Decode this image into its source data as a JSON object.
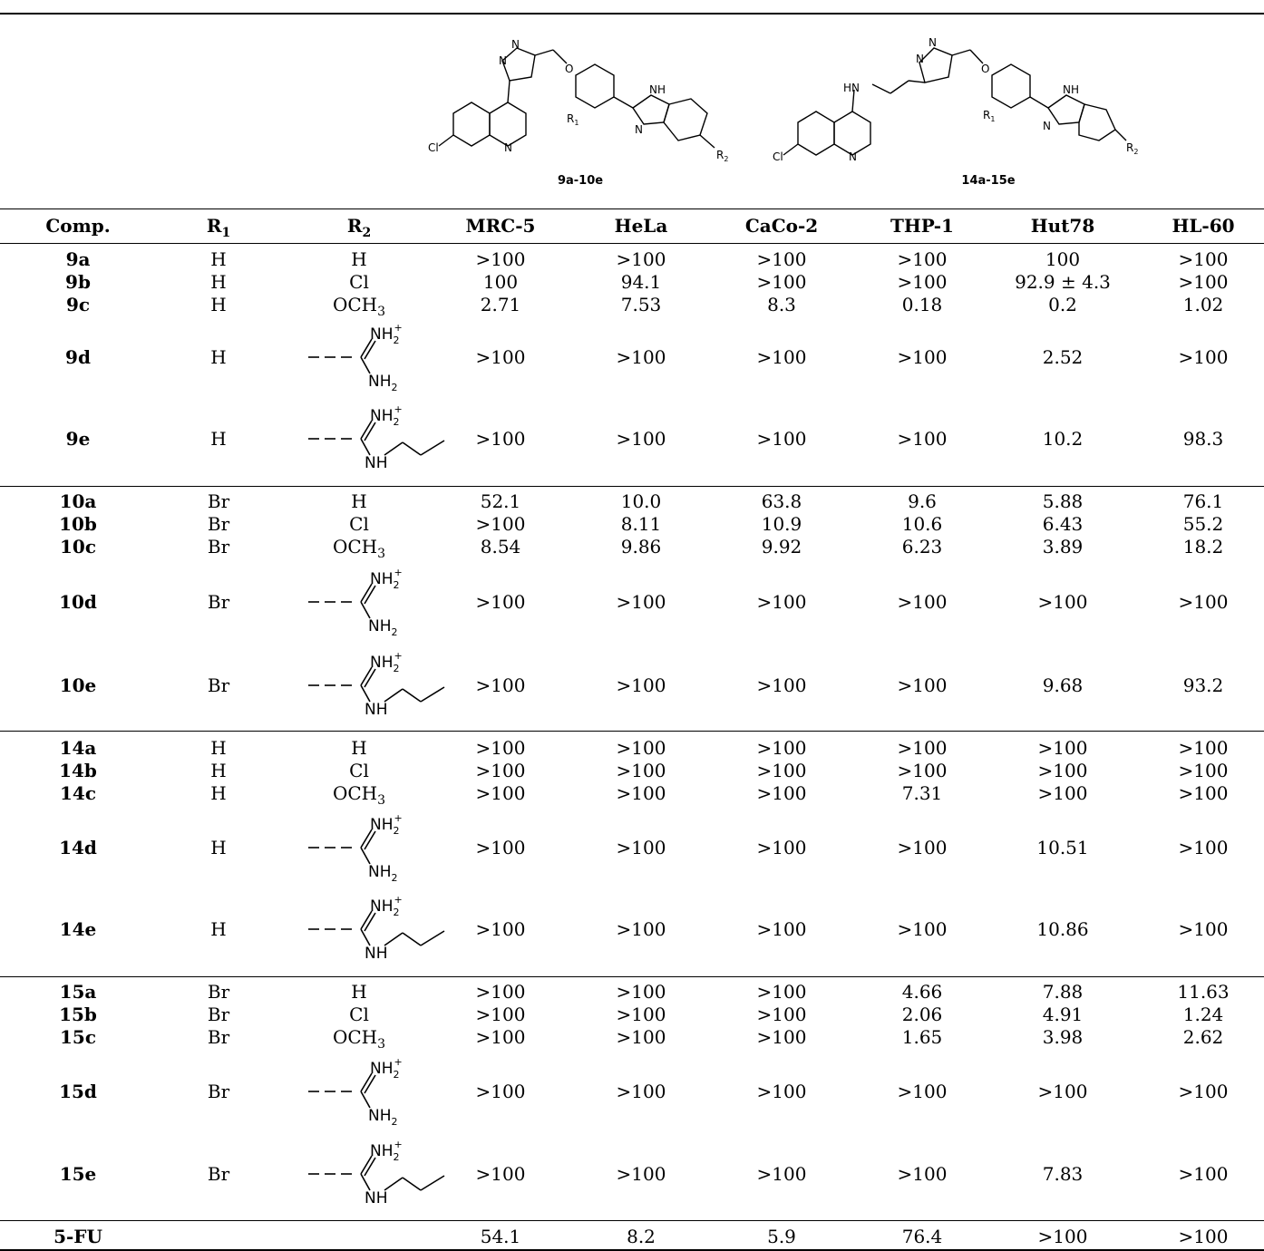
{
  "structures": [
    {
      "label": "9a-10e"
    },
    {
      "label": "14a-15e"
    }
  ],
  "atoms": {
    "N": "N",
    "O": "O",
    "Cl": "Cl",
    "NH": "NH",
    "HN": "HN",
    "R1": "R",
    "R2": "R",
    "one": "1",
    "two": "2"
  },
  "amidine": {
    "top": "NH",
    "top_sub": "2",
    "plus": "+",
    "bottom": "NH",
    "bottom_sub": "2"
  },
  "guanidine": {
    "top": "NH",
    "top_sub": "2",
    "plus": "+",
    "bottom": "NH"
  },
  "headers": {
    "comp": "Comp.",
    "r1_base": "R",
    "r1_sub": "1",
    "r2_base": "R",
    "r2_sub": "2",
    "c1": "MRC-5",
    "c2": "HeLa",
    "c3": "CaCo-2",
    "c4": "THP-1",
    "c5": "Hut78",
    "c6": "HL-60"
  },
  "rows": [
    {
      "comp": "9a",
      "r1": "H",
      "r2": "H",
      "v": [
        ">100",
        ">100",
        ">100",
        ">100",
        "100",
        ">100"
      ]
    },
    {
      "comp": "9b",
      "r1": "H",
      "r2": "Cl",
      "v": [
        "100",
        "94.1",
        ">100",
        ">100",
        "92.9 ± 4.3",
        ">100"
      ]
    },
    {
      "comp": "9c",
      "r1": "H",
      "r2": "OCH",
      "r2sub": "3",
      "v": [
        "2.71",
        "7.53",
        "8.3",
        "0.18",
        "0.2",
        "1.02"
      ]
    },
    {
      "comp": "9d",
      "r1": "H",
      "r2type": "amidine",
      "v": [
        ">100",
        ">100",
        ">100",
        ">100",
        "2.52",
        ">100"
      ]
    },
    {
      "comp": "9e",
      "r1": "H",
      "r2type": "guanidine",
      "v": [
        ">100",
        ">100",
        ">100",
        ">100",
        "10.2",
        "98.3"
      ]
    },
    {
      "comp": "10a",
      "r1": "Br",
      "r2": "H",
      "v": [
        "52.1",
        "10.0",
        "63.8",
        "9.6",
        "5.88",
        "76.1"
      ]
    },
    {
      "comp": "10b",
      "r1": "Br",
      "r2": "Cl",
      "v": [
        ">100",
        "8.11",
        "10.9",
        "10.6",
        "6.43",
        "55.2"
      ]
    },
    {
      "comp": "10c",
      "r1": "Br",
      "r2": "OCH",
      "r2sub": "3",
      "v": [
        "8.54",
        "9.86",
        "9.92",
        "6.23",
        "3.89",
        "18.2"
      ]
    },
    {
      "comp": "10d",
      "r1": "Br",
      "r2type": "amidine",
      "v": [
        ">100",
        ">100",
        ">100",
        ">100",
        ">100",
        ">100"
      ]
    },
    {
      "comp": "10e",
      "r1": "Br",
      "r2type": "guanidine",
      "v": [
        ">100",
        ">100",
        ">100",
        ">100",
        "9.68",
        "93.2"
      ]
    },
    {
      "comp": "14a",
      "r1": "H",
      "r2": "H",
      "v": [
        ">100",
        ">100",
        ">100",
        ">100",
        ">100",
        ">100"
      ]
    },
    {
      "comp": "14b",
      "r1": "H",
      "r2": "Cl",
      "v": [
        ">100",
        ">100",
        ">100",
        ">100",
        ">100",
        ">100"
      ]
    },
    {
      "comp": "14c",
      "r1": "H",
      "r2": "OCH",
      "r2sub": "3",
      "v": [
        ">100",
        ">100",
        ">100",
        "7.31",
        ">100",
        ">100"
      ]
    },
    {
      "comp": "14d",
      "r1": "H",
      "r2type": "amidine",
      "v": [
        ">100",
        ">100",
        ">100",
        ">100",
        "10.51",
        ">100"
      ]
    },
    {
      "comp": "14e",
      "r1": "H",
      "r2type": "guanidine",
      "v": [
        ">100",
        ">100",
        ">100",
        ">100",
        "10.86",
        ">100"
      ]
    },
    {
      "comp": "15a",
      "r1": "Br",
      "r2": "H",
      "v": [
        ">100",
        ">100",
        ">100",
        "4.66",
        "7.88",
        "11.63"
      ]
    },
    {
      "comp": "15b",
      "r1": "Br",
      "r2": "Cl",
      "v": [
        ">100",
        ">100",
        ">100",
        "2.06",
        "4.91",
        "1.24"
      ]
    },
    {
      "comp": "15c",
      "r1": "Br",
      "r2": "OCH",
      "r2sub": "3",
      "v": [
        ">100",
        ">100",
        ">100",
        "1.65",
        "3.98",
        "2.62"
      ]
    },
    {
      "comp": "15d",
      "r1": "Br",
      "r2type": "amidine",
      "v": [
        ">100",
        ">100",
        ">100",
        ">100",
        ">100",
        ">100"
      ]
    },
    {
      "comp": "15e",
      "r1": "Br",
      "r2type": "guanidine",
      "v": [
        ">100",
        ">100",
        ">100",
        ">100",
        "7.83",
        ">100"
      ]
    },
    {
      "comp": "5-FU",
      "r1": "",
      "r2": "",
      "v": [
        "54.1",
        "8.2",
        "5.9",
        "76.4",
        ">100",
        ">100"
      ]
    }
  ]
}
